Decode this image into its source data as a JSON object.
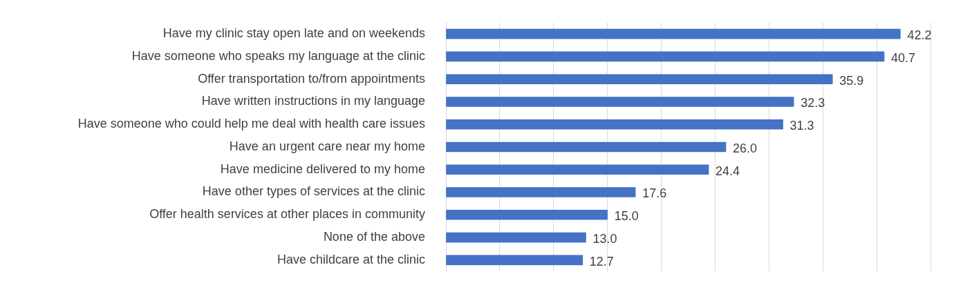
{
  "chart_data": {
    "type": "bar",
    "orientation": "horizontal",
    "categories": [
      "Have my clinic stay open late and on weekends",
      "Have someone who speaks my language at the clinic",
      "Offer transportation to/from appointments",
      "Have written instructions in my language",
      "Have someone who could help me deal with health care issues",
      "Have an urgent care near my home",
      "Have medicine delivered to my home",
      "Have other types of services at the clinic",
      "Offer health services at other places in community",
      "None of the above",
      "Have childcare at the clinic"
    ],
    "values": [
      42.2,
      40.7,
      35.9,
      32.3,
      31.3,
      26.0,
      24.4,
      17.6,
      15.0,
      13.0,
      12.7
    ],
    "value_labels": [
      "42.2",
      "40.7",
      "35.9",
      "32.3",
      "31.3",
      "26.0",
      "24.4",
      "17.6",
      "15.0",
      "13.0",
      "12.7"
    ],
    "color": "#4472c4",
    "xlim": [
      0,
      45
    ],
    "xticks": [
      {
        "value": 0,
        "label": null
      },
      {
        "value": 5,
        "label": null
      },
      {
        "value": 10,
        "label": null
      },
      {
        "value": 15,
        "label": null
      },
      {
        "value": 20,
        "label": null
      },
      {
        "value": 25,
        "label": null
      },
      {
        "value": 30,
        "label": null
      },
      {
        "value": 35,
        "label": null
      },
      {
        "value": 40,
        "label": null
      },
      {
        "value": 45,
        "label": null
      }
    ],
    "grid": "x",
    "tick_labels": "y",
    "legend": false
  }
}
